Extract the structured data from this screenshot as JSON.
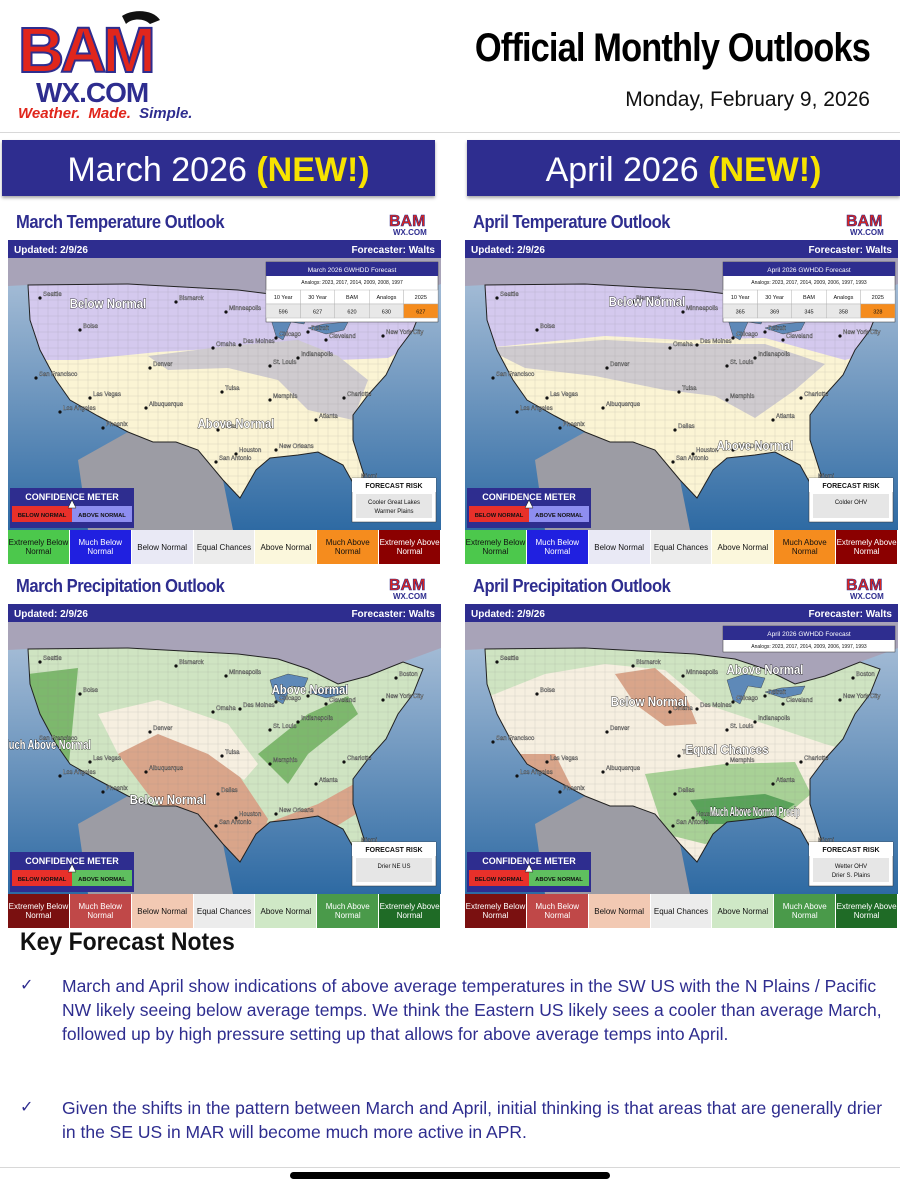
{
  "brand": {
    "logo_text": "BAM",
    "domain": "WX.COM",
    "tagline_1": "Weather.",
    "tagline_2": "Made.",
    "tagline_3": "Simple."
  },
  "header": {
    "title": "Official Monthly Outlooks",
    "date": "Monday, February 9, 2026"
  },
  "months": [
    {
      "name": "March 2026",
      "badge": "(NEW!)"
    },
    {
      "name": "April 2026",
      "badge": "(NEW!)"
    }
  ],
  "panels": {
    "mar_temp": {
      "title": "March Temperature Outlook",
      "updated": "Updated: 2/9/26",
      "forecaster": "Forecaster: Walts",
      "gwhdd": {
        "title": "March 2026 GWHDD Forecast",
        "analogs": "Analogs: 2023, 2017, 2014, 2009, 2008, 1997",
        "headers": [
          "10 Year",
          "30 Year",
          "BAM",
          "Analogs",
          "2025"
        ],
        "values": [
          "596",
          "627",
          "620",
          "630",
          "627"
        ]
      },
      "labels": {
        "a": "Below Normal",
        "b": "Above Normal"
      },
      "forecast_risk": {
        "title": "FORECAST RISK",
        "line1": "Cooler Great Lakes",
        "line2": "Warmer Plains"
      }
    },
    "apr_temp": {
      "title": "April Temperature Outlook",
      "updated": "Updated: 2/9/26",
      "forecaster": "Forecaster: Walts",
      "gwhdd": {
        "title": "April 2026 GWHDD Forecast",
        "analogs": "Analogs: 2023, 2017, 2014, 2009, 2006, 1997, 1993",
        "headers": [
          "10 Year",
          "30 Year",
          "BAM",
          "Analogs",
          "2025"
        ],
        "values": [
          "365",
          "369",
          "345",
          "358",
          "328"
        ]
      },
      "labels": {
        "a": "Below Normal",
        "b": "Above Normal"
      },
      "forecast_risk": {
        "title": "FORECAST RISK",
        "line1": "Colder OHV",
        "line2": ""
      }
    },
    "mar_precip": {
      "title": "March Precipitation Outlook",
      "updated": "Updated: 2/9/26",
      "forecaster": "Forecaster: Walts",
      "labels": {
        "a": "Above Normal",
        "b": "Much Above Normal",
        "c": "Below Normal"
      },
      "forecast_risk": {
        "title": "FORECAST RISK",
        "line1": "Drier NE US",
        "line2": ""
      }
    },
    "apr_precip": {
      "title": "April Precipitation Outlook",
      "updated": "Updated: 2/9/26",
      "forecaster": "Forecaster: Walts",
      "gwhdd": {
        "title": "April 2026 GWHDD Forecast",
        "analogs": "Analogs: 2023, 2017, 2014, 2009, 2006, 1997, 1993"
      },
      "labels": {
        "a": "Above Normal",
        "b": "Below Normal",
        "c": "Equal Chances",
        "d": "Much Above Normal Precip"
      },
      "forecast_risk": {
        "title": "FORECAST RISK",
        "line1": "Wetter OHV",
        "line2": "Drier S. Plains"
      }
    }
  },
  "confidence": {
    "title": "CONFIDENCE METER",
    "below": "BELOW NORMAL",
    "above": "ABOVE NORMAL"
  },
  "temp_legend": [
    "Extremely Below Normal",
    "Much Below Normal",
    "Below Normal",
    "Equal Chances",
    "Above Normal",
    "Much Above Normal",
    "Extremely Above Normal"
  ],
  "precip_legend": [
    "Extremely Below Normal",
    "Much Below Normal",
    "Below Normal",
    "Equal Chances",
    "Above Normal",
    "Much Above Normal",
    "Extremely Above Normal"
  ],
  "colors": {
    "brand_blue": "#2e2d8f",
    "brand_red": "#e0261c",
    "badge_yellow": "#f7e300",
    "temp_legend": [
      "#4cc84c",
      "#2020e0",
      "#e9e9f5",
      "#ececec",
      "#fbf7dc",
      "#f58c1e",
      "#8b0000"
    ],
    "precip_legend": [
      "#7a1010",
      "#c04848",
      "#f2c9b3",
      "#ececec",
      "#cfe8c6",
      "#4a9a4a",
      "#1f6b26"
    ]
  },
  "cities": [
    "Seattle",
    "Boise",
    "Bismarck",
    "Minneapolis",
    "Chicago",
    "Detroit",
    "Cleveland",
    "Boston",
    "New York City",
    "Des Moines",
    "Denver",
    "San Francisco",
    "Las Vegas",
    "Los Angeles",
    "Phoenix",
    "Albuquerque",
    "Tulsa",
    "Dallas",
    "Houston",
    "San Antonio",
    "New Orleans",
    "Atlanta",
    "Charlotte",
    "St. Louis",
    "Indianapolis",
    "Memphis",
    "Miami",
    "Omaha"
  ],
  "notes": {
    "heading": "Key Forecast Notes",
    "items": [
      "March and April show indications of above average temperatures in the SW US with the N Plains / Pacific NW likely seeing below average temps. We think the Eastern US likely sees a cooler than average March, followed up by high pressure setting up that allows for above average temps into April.",
      "Given the shifts in the pattern between March and April, initial thinking is that areas that are generally drier in the SE US in MAR will become much more active in APR."
    ]
  }
}
